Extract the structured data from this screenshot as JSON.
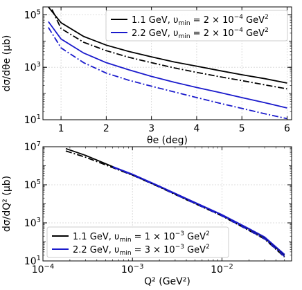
{
  "chart_data": [
    {
      "type": "line",
      "xlabel": "θe (deg)",
      "ylabel": "dσ/dθe (μb)",
      "xscale": "linear",
      "yscale": "log",
      "xlim": [
        0.6,
        6.1
      ],
      "ylim": [
        10,
        200000
      ],
      "xticks": [
        1,
        2,
        3,
        4,
        5,
        6
      ],
      "xtick_labels": [
        "1",
        "2",
        "3",
        "4",
        "5",
        "6"
      ],
      "yticks": [
        10,
        1000,
        100000
      ],
      "ytick_labels": [
        {
          "base": "10",
          "exp": "1"
        },
        {
          "base": "10",
          "exp": "3"
        },
        {
          "base": "10",
          "exp": "5"
        }
      ],
      "grid": true,
      "legend_position": "top-right",
      "legend": [
        {
          "text": "1.1 GeV, υ",
          "sub": "min",
          "rest": " = 2 × 10",
          "sup": "−4",
          "unit": " GeV",
          "unit_sup": "2",
          "color": "#000000"
        },
        {
          "text": "2.2 GeV, υ",
          "sub": "min",
          "rest": " = 2 × 10",
          "sup": "−4",
          "unit": " GeV",
          "unit_sup": "2",
          "color": "#1a1acc"
        }
      ],
      "series": [
        {
          "color": "#000000",
          "style": "solid",
          "x": [
            0.72,
            1.0,
            1.5,
            2.0,
            2.5,
            3.0,
            3.5,
            4.0,
            4.5,
            5.0,
            5.5,
            6.0
          ],
          "y": [
            200000,
            50000,
            15000,
            7000,
            4000,
            2500,
            1600,
            1100,
            750,
            520,
            370,
            250
          ]
        },
        {
          "color": "#000000",
          "style": "dashdot",
          "x": [
            0.8,
            1.0,
            1.5,
            2.0,
            2.5,
            3.0,
            3.5,
            4.0,
            4.5,
            5.0,
            5.5,
            6.0
          ],
          "y": [
            160000,
            30000,
            9000,
            4300,
            2400,
            1500,
            950,
            640,
            440,
            310,
            215,
            150
          ]
        },
        {
          "color": "#1a1acc",
          "style": "solid",
          "x": [
            0.72,
            1.0,
            1.5,
            2.0,
            2.5,
            3.0,
            3.5,
            4.0,
            4.5,
            5.0,
            5.5,
            6.0
          ],
          "y": [
            55000,
            12000,
            3500,
            1500,
            800,
            450,
            270,
            170,
            110,
            70,
            45,
            28
          ]
        },
        {
          "color": "#1a1acc",
          "style": "dashdot",
          "x": [
            0.72,
            1.0,
            1.5,
            2.0,
            2.5,
            3.0,
            3.5,
            4.0,
            4.5,
            5.0,
            5.5,
            6.0
          ],
          "y": [
            33000,
            5500,
            1500,
            600,
            320,
            190,
            115,
            70,
            43,
            27,
            17,
            11
          ]
        }
      ]
    },
    {
      "type": "line",
      "xlabel": "Q² (GeV²)",
      "ylabel": "dσ/dQ² (μb)",
      "xscale": "log",
      "yscale": "log",
      "xlim": [
        0.0001,
        0.06
      ],
      "ylim": [
        10,
        10000000
      ],
      "xticks": [
        0.0001,
        0.001,
        0.01
      ],
      "xtick_labels": [
        {
          "base": "10",
          "exp": "−4"
        },
        {
          "base": "10",
          "exp": "−3"
        },
        {
          "base": "10",
          "exp": "−2"
        }
      ],
      "yticks": [
        10,
        1000,
        100000,
        10000000
      ],
      "ytick_labels": [
        {
          "base": "10",
          "exp": "1"
        },
        {
          "base": "10",
          "exp": "3"
        },
        {
          "base": "10",
          "exp": "5"
        },
        {
          "base": "10",
          "exp": "7"
        }
      ],
      "grid": true,
      "legend_position": "bottom-left",
      "legend": [
        {
          "text": "1.1 GeV, υ",
          "sub": "min",
          "rest": " = 1 × 10",
          "sup": "−3",
          "unit": " GeV",
          "unit_sup": "2",
          "color": "#000000"
        },
        {
          "text": "2.2 GeV, υ",
          "sub": "min",
          "rest": " = 3 × 10",
          "sup": "−3",
          "unit": " GeV",
          "unit_sup": "2",
          "color": "#1a1acc"
        }
      ],
      "series": [
        {
          "color": "#000000",
          "style": "solid",
          "x": [
            0.00018,
            0.0003,
            0.0006,
            0.001,
            0.002,
            0.004,
            0.007,
            0.01,
            0.02,
            0.03,
            0.05
          ],
          "y": [
            8000000,
            3500000,
            900000,
            330000,
            80000,
            18000,
            5600,
            2600,
            480,
            170,
            20
          ]
        },
        {
          "color": "#000000",
          "style": "dashdot",
          "x": [
            0.00018,
            0.0003,
            0.0006,
            0.001,
            0.002,
            0.004,
            0.007,
            0.01,
            0.02,
            0.03,
            0.05
          ],
          "y": [
            6000000,
            2800000,
            800000,
            320000,
            76000,
            16500,
            5000,
            2300,
            400,
            140,
            16
          ]
        },
        {
          "color": "#1a1acc",
          "style": "solid",
          "x": [
            0.0006,
            0.001,
            0.002,
            0.004,
            0.007,
            0.01,
            0.02,
            0.03,
            0.05
          ],
          "y": [
            900000,
            360000,
            85000,
            19000,
            5800,
            2700,
            500,
            180,
            22
          ]
        },
        {
          "color": "#1a1acc",
          "style": "dashdot",
          "x": [
            0.0006,
            0.001,
            0.002,
            0.004,
            0.007,
            0.01,
            0.02,
            0.03,
            0.05
          ],
          "y": [
            850000,
            330000,
            78000,
            16800,
            5100,
            2350,
            410,
            145,
            17
          ]
        }
      ]
    }
  ]
}
